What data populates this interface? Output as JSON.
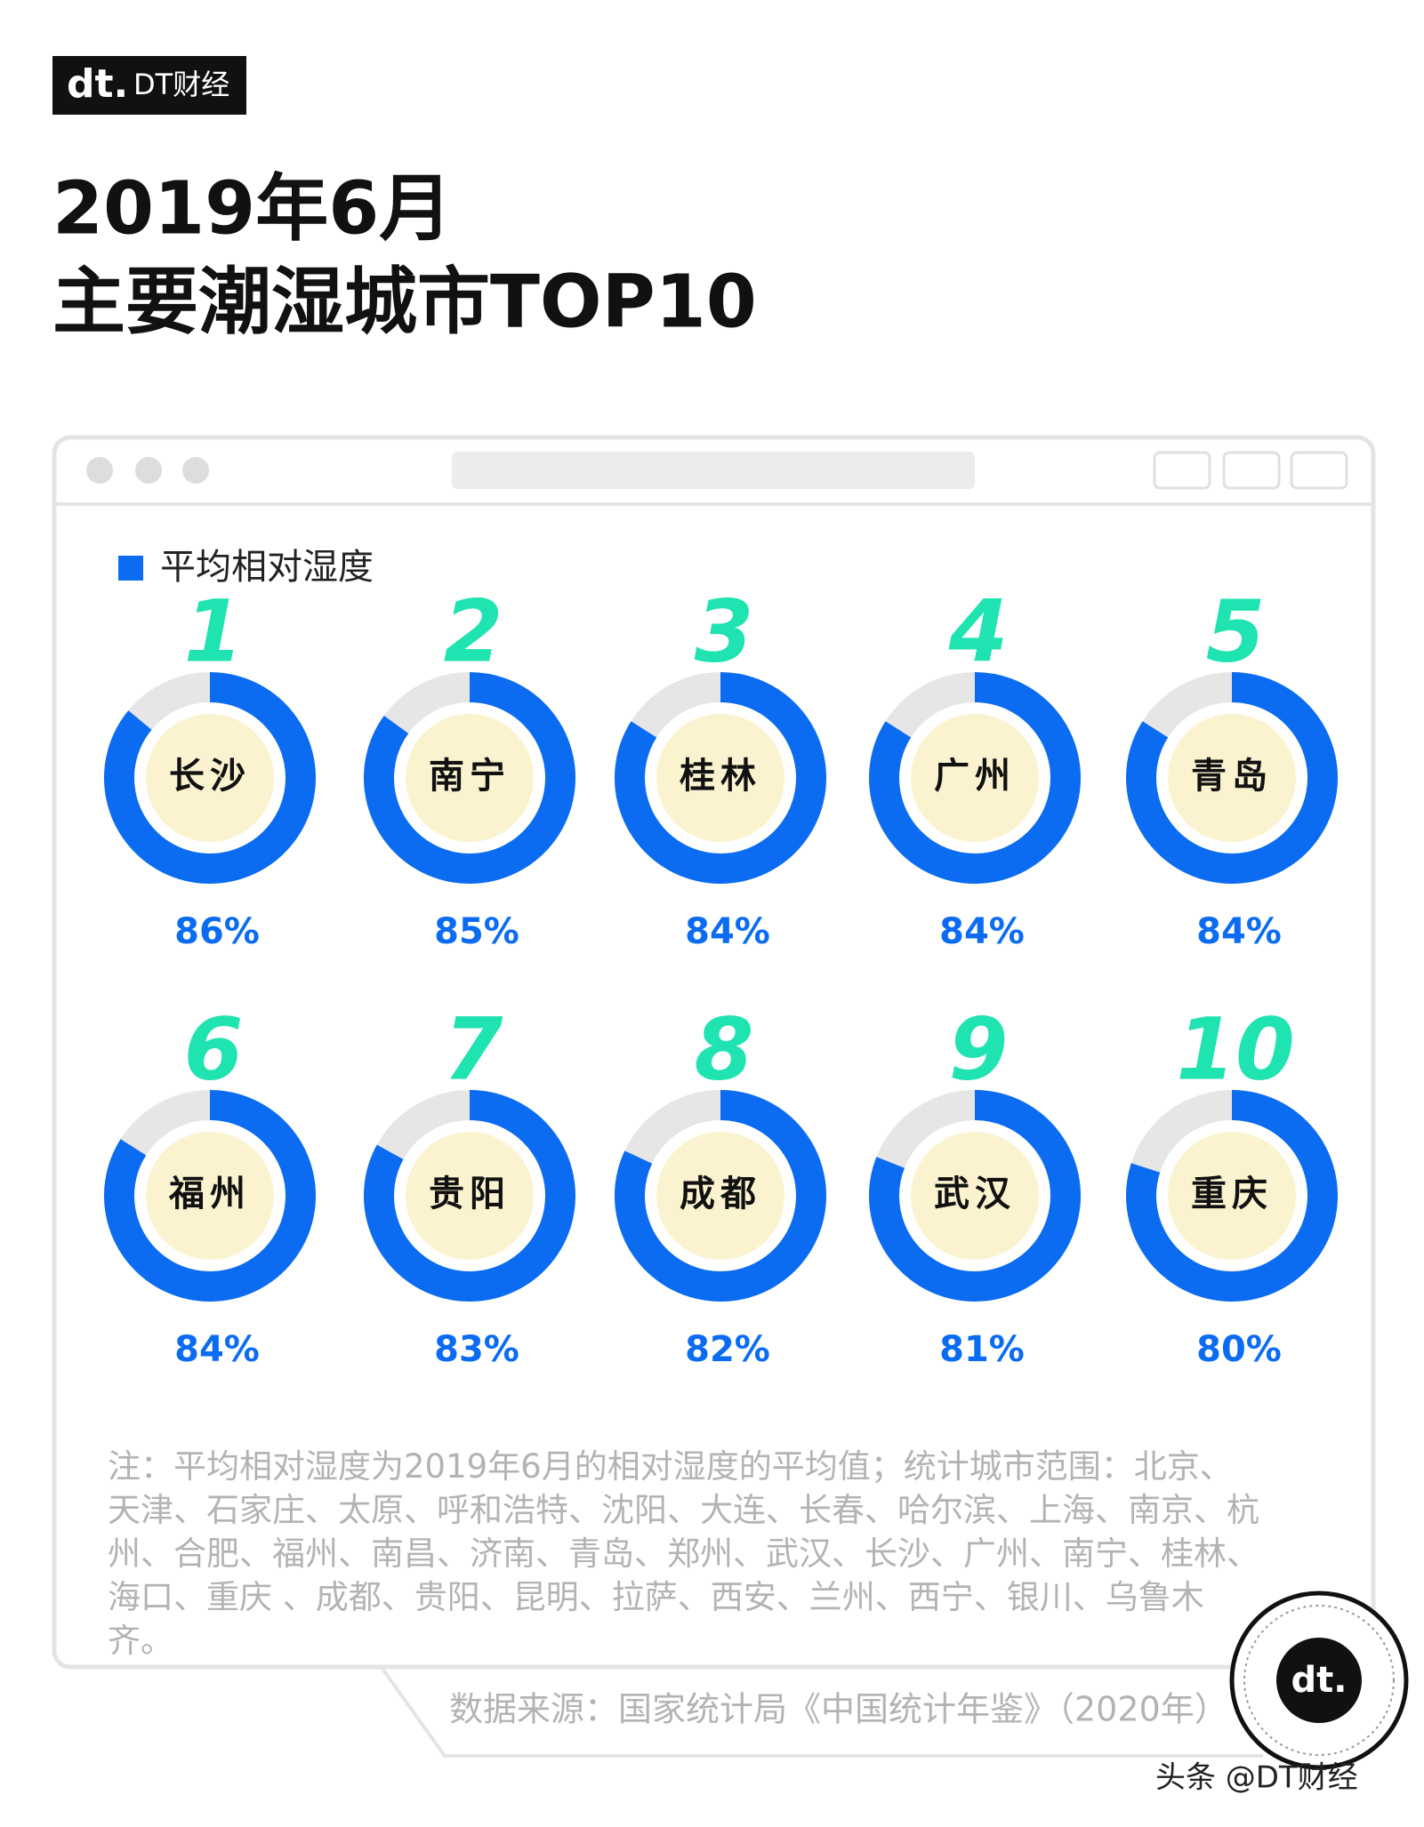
{
  "brand": {
    "logo": "dt.",
    "name": "DT财经"
  },
  "chart_data": {
    "type": "donut",
    "title_lines": [
      "2019年6月",
      "主要潮湿城市TOP10"
    ],
    "series": [
      {
        "name": "平均相对湿度",
        "color": "#0b6cf2",
        "values": [
          86,
          85,
          84,
          84,
          84,
          84,
          83,
          82,
          81,
          80
        ],
        "value_labels": [
          "86%",
          "85%",
          "84%",
          "84%",
          "84%",
          "84%",
          "83%",
          "82%",
          "81%",
          "80%"
        ]
      }
    ],
    "ranks": [
      1,
      2,
      3,
      4,
      5,
      6,
      7,
      8,
      9,
      10
    ],
    "categories": [
      "长沙",
      "南宁",
      "桂林",
      "广州",
      "青岛",
      "福州",
      "贵阳",
      "成都",
      "武汉",
      "重庆"
    ],
    "ylim": [
      0,
      100
    ],
    "rest_color": "#e6e6e6",
    "legend": "top-left"
  },
  "note": "注：平均相对湿度为2019年6月的相对湿度的平均值；统计城市范围：北京、天津、石家庄、太原、呼和浩特、沈阳、大连、长春、哈尔滨、上海、南京、杭州、合肥、福州、南昌、济南、青岛、郑州、武汉、长沙、广州、南宁、桂林、海口、重庆 、成都、贵阳、昆明、拉萨、西安、兰州、西宁、银川、乌鲁木齐。",
  "source": "数据来源：国家统计局《中国统计年鉴》（2020年）",
  "footer": "头条 @DT财经"
}
